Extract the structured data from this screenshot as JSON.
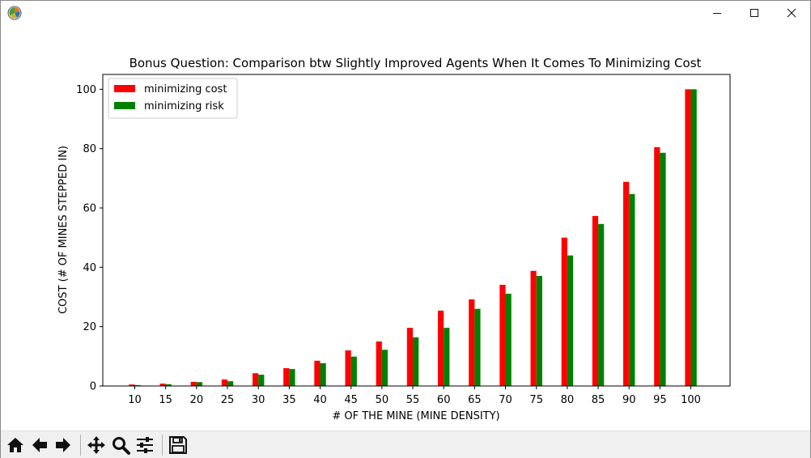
{
  "window": {
    "app_icon": "matplotlib-icon",
    "controls": [
      "minimize-icon",
      "maximize-icon",
      "close-icon"
    ]
  },
  "toolbar": {
    "buttons": [
      "home-icon",
      "back-arrow-icon",
      "forward-arrow-icon",
      "pan-icon",
      "zoom-icon",
      "configure-subplots-icon",
      "save-icon"
    ]
  },
  "chart_data": {
    "type": "bar",
    "title": "Bonus Question: Comparison btw Slightly Improved Agents When It Comes To Minimizing Cost",
    "xlabel": "# OF THE MINE (MINE DENSITY)",
    "ylabel": "COST (# OF MINES STEPPED IN)",
    "categories": [
      "10",
      "15",
      "20",
      "25",
      "30",
      "35",
      "40",
      "45",
      "50",
      "55",
      "60",
      "65",
      "70",
      "75",
      "80",
      "85",
      "90",
      "95",
      "100"
    ],
    "ylim": [
      0,
      105
    ],
    "yticks": [
      "0",
      "20",
      "40",
      "60",
      "80",
      "100"
    ],
    "legend_position": "top-left",
    "grid": false,
    "series": [
      {
        "name": "minimizing cost",
        "color": "#ff0000",
        "values": [
          0.5,
          0.8,
          1.4,
          2.2,
          4.3,
          6.0,
          8.5,
          12.0,
          15.0,
          19.6,
          25.4,
          29.2,
          34.1,
          38.8,
          50.0,
          57.3,
          68.8,
          80.5,
          100.0
        ]
      },
      {
        "name": "minimizing risk",
        "color": "#008000",
        "values": [
          0.3,
          0.6,
          1.3,
          1.6,
          3.8,
          5.7,
          7.7,
          9.9,
          12.2,
          16.4,
          19.6,
          26.0,
          31.1,
          37.1,
          44.0,
          54.6,
          64.7,
          78.6,
          100.0
        ]
      }
    ]
  }
}
